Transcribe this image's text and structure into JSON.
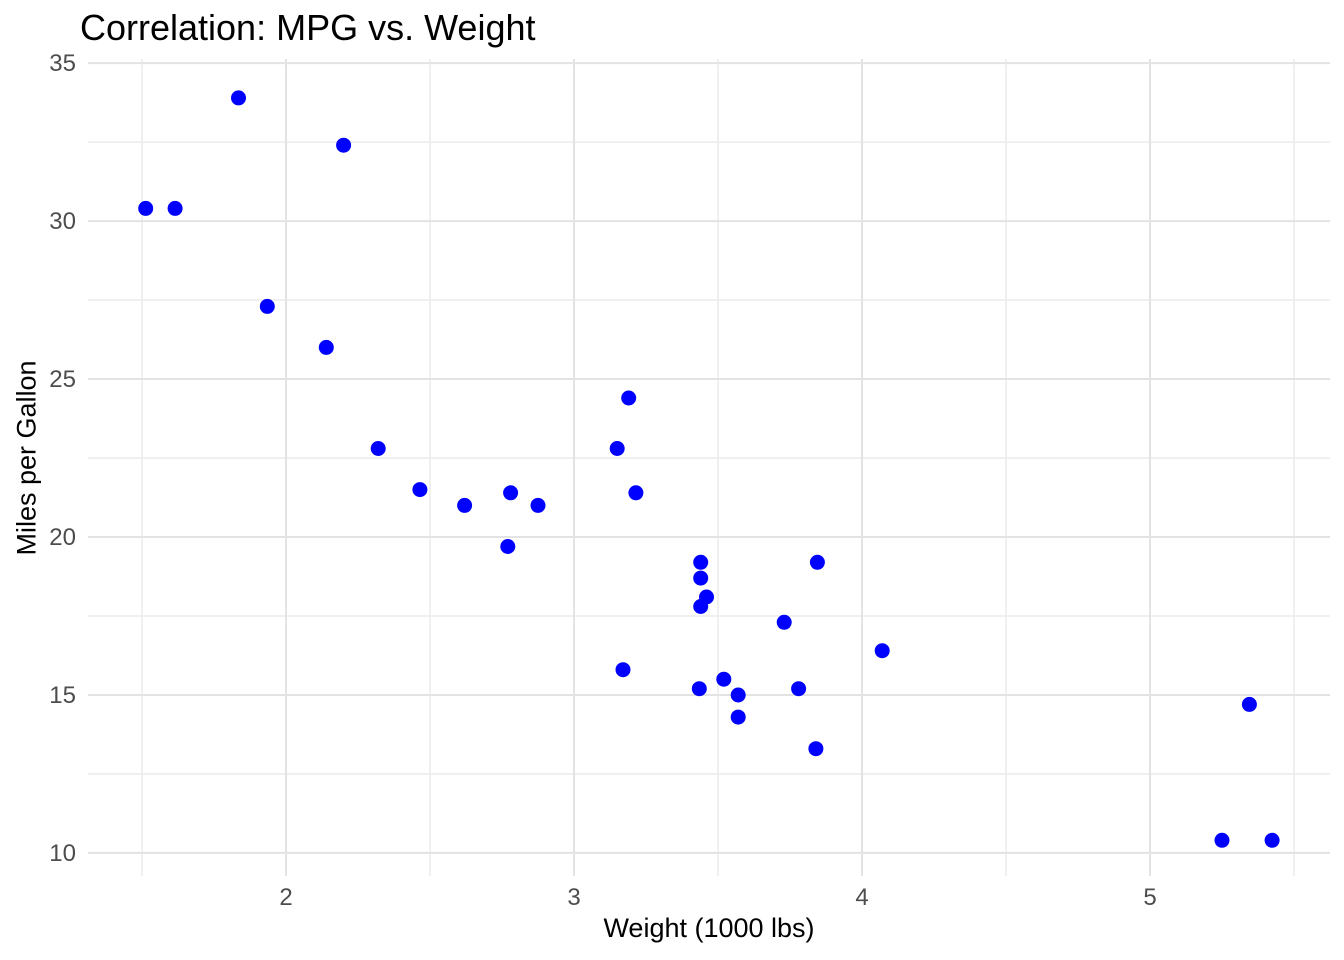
{
  "chart_data": {
    "type": "scatter",
    "title": "Correlation: MPG vs. Weight",
    "xlabel": "Weight (1000 lbs)",
    "ylabel": "Miles per Gallon",
    "x_ticks": [
      2,
      3,
      4,
      5
    ],
    "y_ticks": [
      10,
      15,
      20,
      25,
      30,
      35
    ],
    "x_minor_ticks": [
      1.5,
      2.5,
      3.5,
      4.5,
      5.5
    ],
    "y_minor_ticks": [
      12.5,
      17.5,
      22.5,
      27.5,
      32.5
    ],
    "xlim": [
      1.3125,
      5.625
    ],
    "ylim": [
      9.27,
      35.13
    ],
    "grid": true,
    "legend_position": "none",
    "point_color": "#0000FF",
    "point_radius": 7.5,
    "points": [
      {
        "x": 2.62,
        "y": 21.0
      },
      {
        "x": 2.875,
        "y": 21.0
      },
      {
        "x": 2.32,
        "y": 22.8
      },
      {
        "x": 3.215,
        "y": 21.4
      },
      {
        "x": 3.44,
        "y": 18.7
      },
      {
        "x": 3.46,
        "y": 18.1
      },
      {
        "x": 3.57,
        "y": 14.3
      },
      {
        "x": 3.19,
        "y": 24.4
      },
      {
        "x": 3.15,
        "y": 22.8
      },
      {
        "x": 3.44,
        "y": 19.2
      },
      {
        "x": 3.44,
        "y": 17.8
      },
      {
        "x": 4.07,
        "y": 16.4
      },
      {
        "x": 3.73,
        "y": 17.3
      },
      {
        "x": 3.78,
        "y": 15.2
      },
      {
        "x": 5.25,
        "y": 10.4
      },
      {
        "x": 5.424,
        "y": 10.4
      },
      {
        "x": 5.345,
        "y": 14.7
      },
      {
        "x": 2.2,
        "y": 32.4
      },
      {
        "x": 1.615,
        "y": 30.4
      },
      {
        "x": 1.835,
        "y": 33.9
      },
      {
        "x": 2.465,
        "y": 21.5
      },
      {
        "x": 3.52,
        "y": 15.5
      },
      {
        "x": 3.435,
        "y": 15.2
      },
      {
        "x": 3.84,
        "y": 13.3
      },
      {
        "x": 3.845,
        "y": 19.2
      },
      {
        "x": 1.935,
        "y": 27.3
      },
      {
        "x": 2.14,
        "y": 26.0
      },
      {
        "x": 1.513,
        "y": 30.4
      },
      {
        "x": 3.17,
        "y": 15.8
      },
      {
        "x": 2.77,
        "y": 19.7
      },
      {
        "x": 3.57,
        "y": 15.0
      },
      {
        "x": 2.78,
        "y": 21.4
      }
    ]
  },
  "colors": {
    "background": "#FFFFFF",
    "point": "#0000FF",
    "tick_label": "#4D4D4D",
    "title_text": "#000000"
  }
}
